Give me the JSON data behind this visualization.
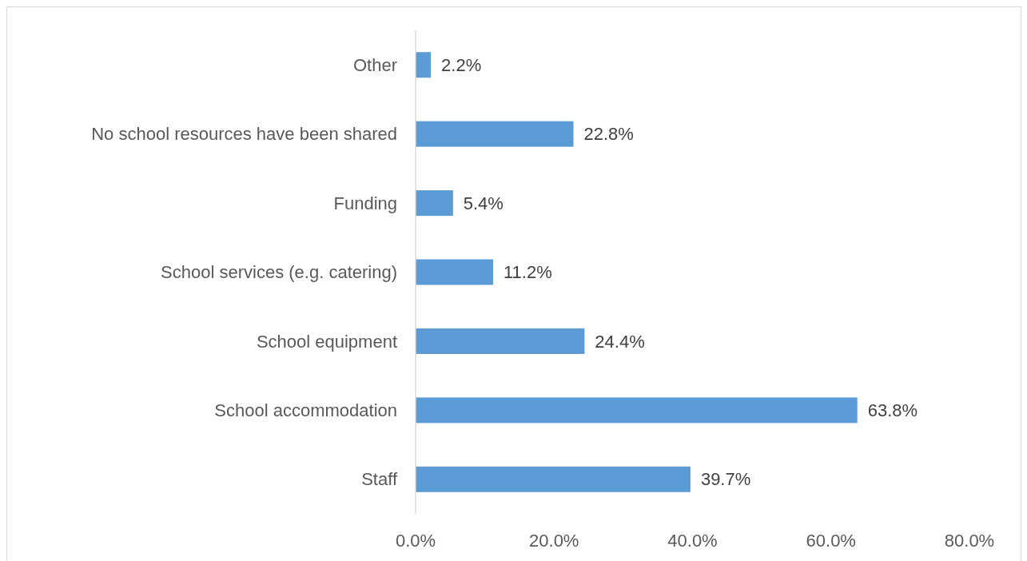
{
  "chart_data": {
    "type": "bar",
    "orientation": "horizontal",
    "categories": [
      "Other",
      "No school resources have been shared",
      "Funding",
      "School services (e.g. catering)",
      "School equipment",
      "School accommodation",
      "Staff"
    ],
    "values": [
      2.2,
      22.8,
      5.4,
      11.2,
      24.4,
      63.8,
      39.7
    ],
    "value_labels": [
      "2.2%",
      "22.8%",
      "5.4%",
      "11.2%",
      "24.4%",
      "63.8%",
      "39.7%"
    ],
    "color": "#5b9bd5",
    "xlim": [
      0,
      80
    ],
    "xticks": [
      {
        "value": 0,
        "label": "0.0%"
      },
      {
        "value": 20,
        "label": "20.0%"
      },
      {
        "value": 40,
        "label": "40.0%"
      },
      {
        "value": 60,
        "label": "60.0%"
      },
      {
        "value": 80,
        "label": "80.0%"
      }
    ],
    "grid": false
  }
}
